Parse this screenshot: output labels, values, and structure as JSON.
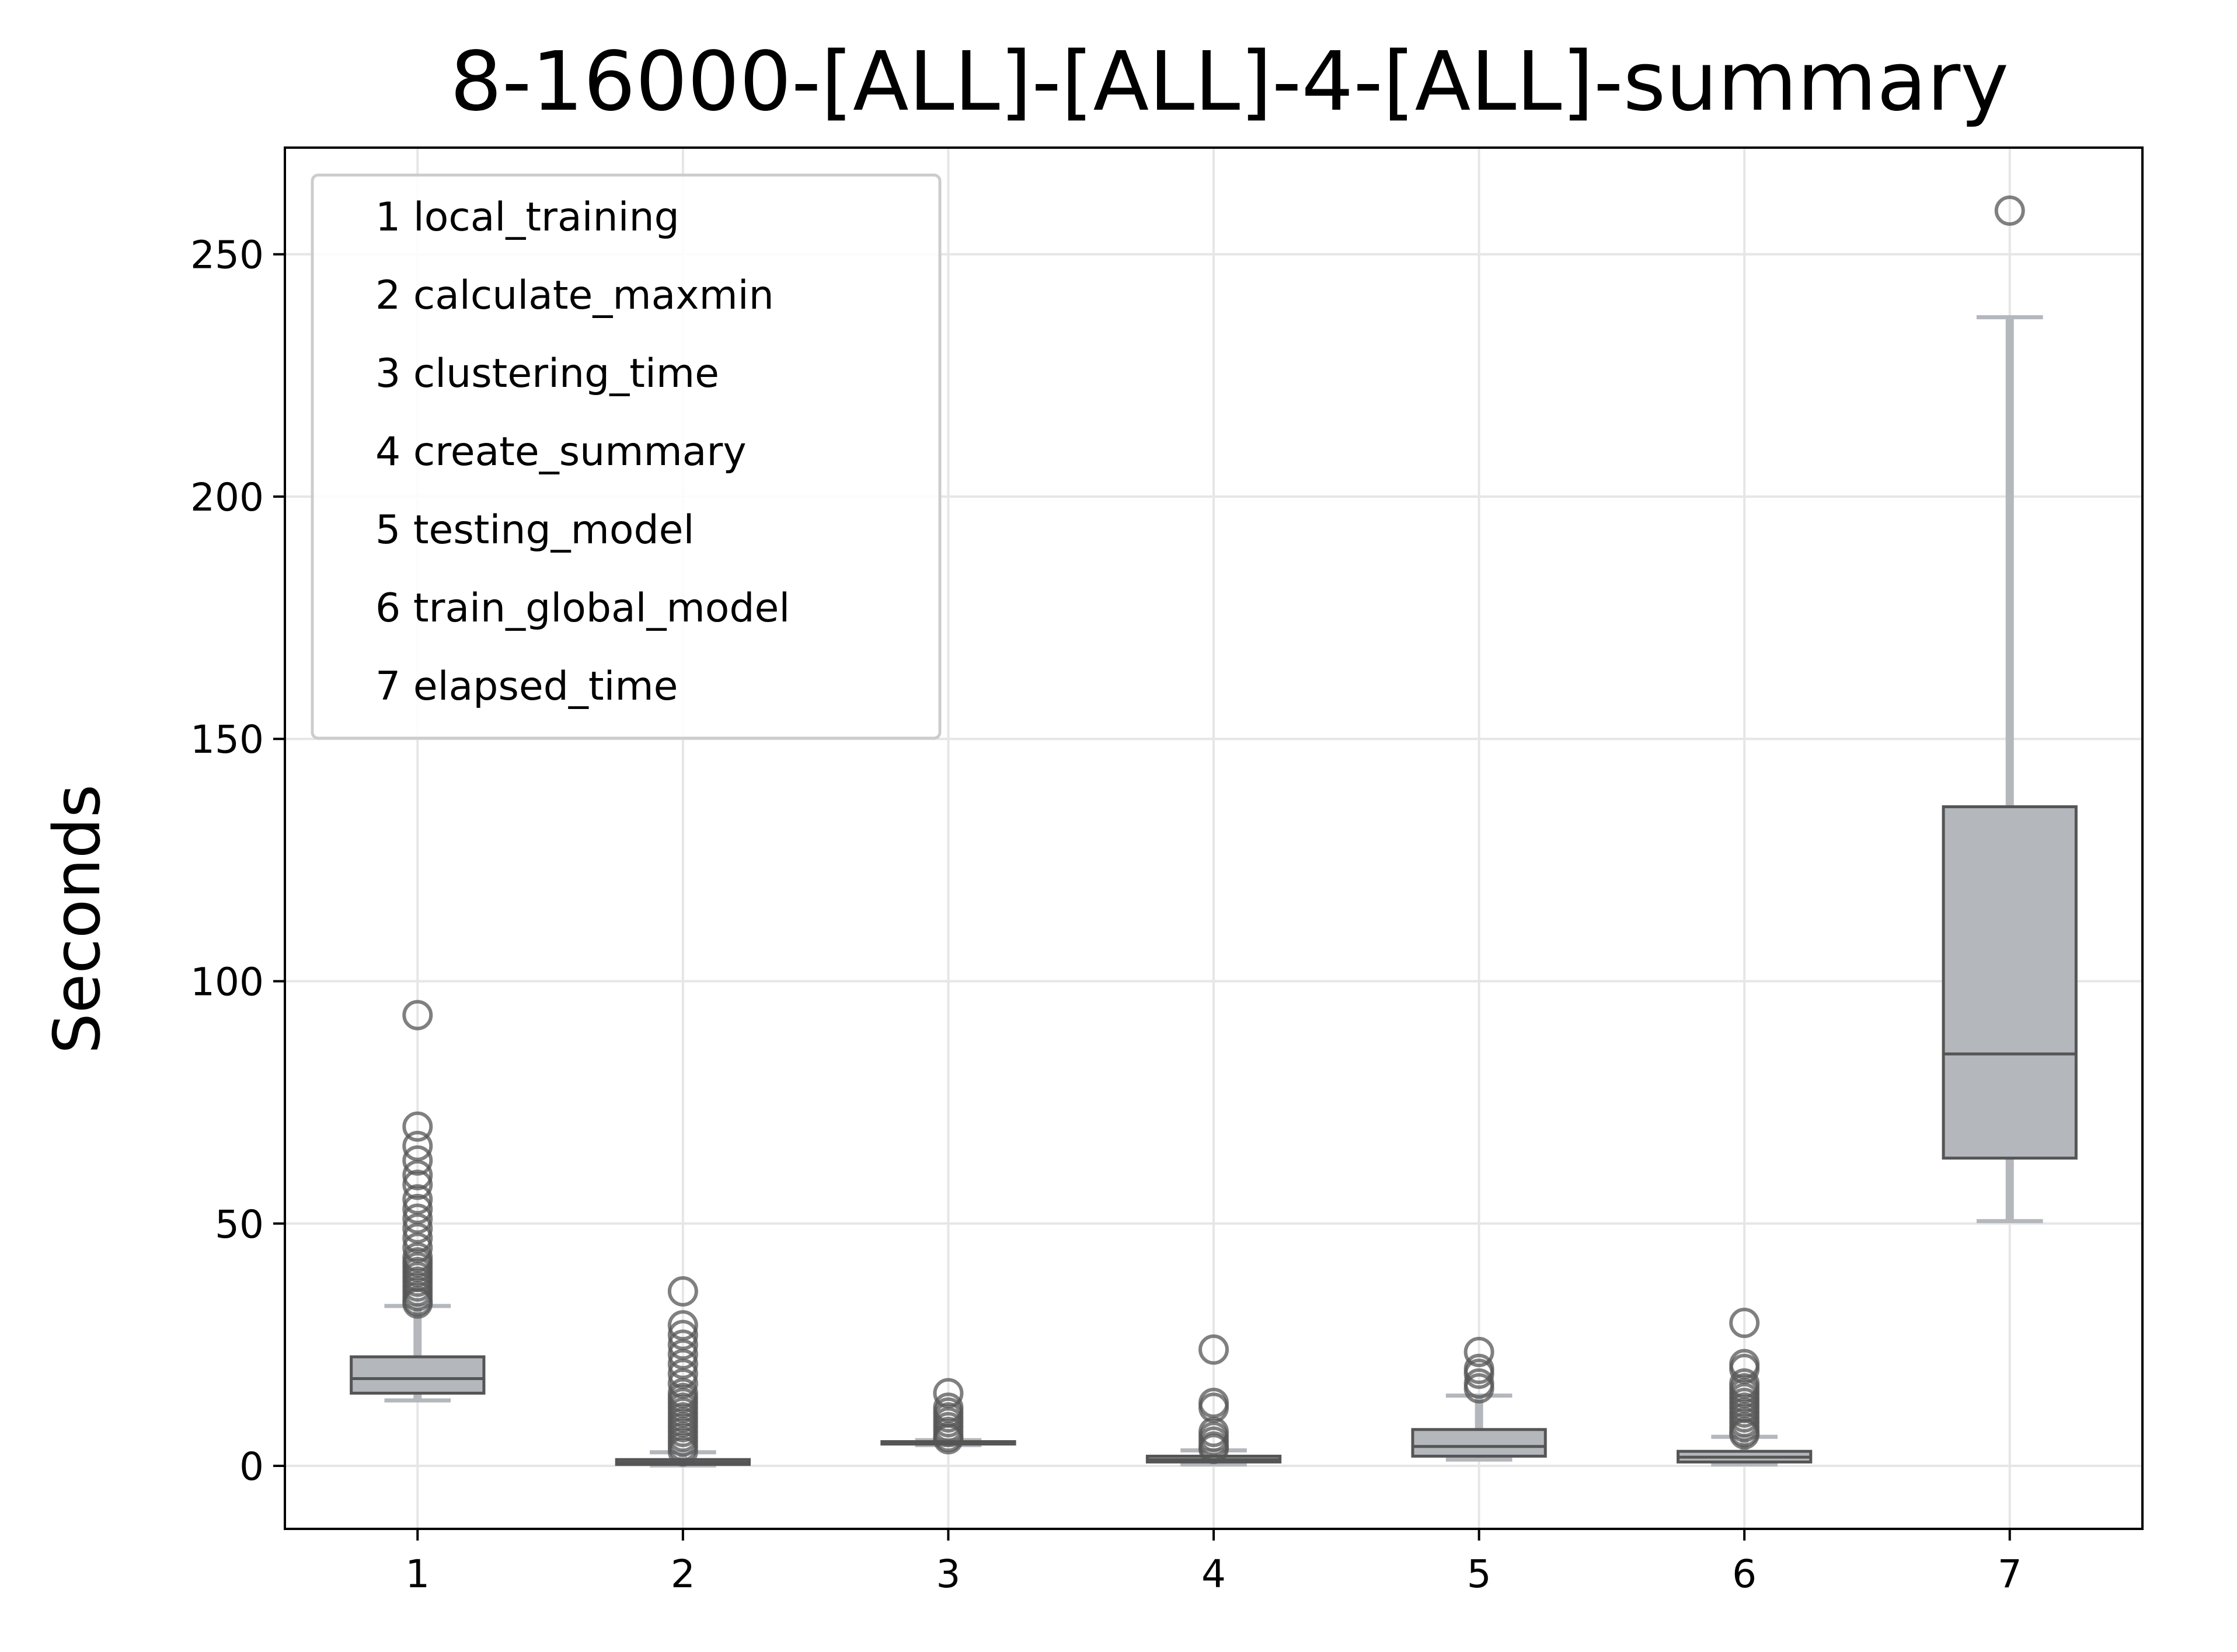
{
  "chart_data": {
    "type": "box",
    "title": "8-16000-[ALL]-[ALL]-4-[ALL]-summary",
    "xlabel": "",
    "ylabel": "Seconds",
    "ylim": [
      -13,
      272
    ],
    "xlim": [
      0.5,
      7.5
    ],
    "grid": true,
    "legend_position": "top-left",
    "colors": {
      "box_fill": "#b4b7bb",
      "box_edge": "#555555",
      "whisker": "#b4b7bb",
      "outlier": "#555555",
      "grid": "#e6e6e6"
    },
    "x_ticks": [
      "1",
      "2",
      "3",
      "4",
      "5",
      "6",
      "7"
    ],
    "y_ticks": [
      0,
      50,
      100,
      150,
      200,
      250
    ],
    "legend": [
      "1 local_training",
      "2 calculate_maxmin",
      "3 clustering_time",
      "4 create_summary",
      "5 testing_model",
      "6 train_global_model",
      "7 elapsed_time"
    ],
    "boxes": [
      {
        "position": 1,
        "whisker_low": 13.5,
        "q1": 15,
        "median": 18,
        "q3": 22.5,
        "whisker_high": 33,
        "outliers": [
          33.5,
          34,
          35,
          36,
          37,
          38,
          39,
          40,
          41,
          42,
          43,
          45,
          47,
          49,
          51,
          53,
          55,
          58,
          60,
          63,
          66,
          70,
          93
        ]
      },
      {
        "position": 2,
        "whisker_low": 0.1,
        "q1": 0.3,
        "median": 0.7,
        "q3": 1.3,
        "whisker_high": 2.8,
        "outliers": [
          3,
          4,
          5,
          6,
          7,
          8,
          9,
          10,
          11,
          12,
          13,
          14,
          15,
          17,
          19,
          21,
          23,
          25,
          27,
          29,
          36
        ]
      },
      {
        "position": 3,
        "whisker_low": 4.3,
        "q1": 4.5,
        "median": 4.7,
        "q3": 5,
        "whisker_high": 5.3,
        "outliers": [
          5.5,
          6,
          7,
          8,
          9,
          10,
          11,
          12,
          15
        ]
      },
      {
        "position": 4,
        "whisker_low": 0.3,
        "q1": 0.8,
        "median": 1.3,
        "q3": 2,
        "whisker_high": 3.2,
        "outliers": [
          3.5,
          4,
          5,
          6,
          7,
          12,
          13,
          24
        ]
      },
      {
        "position": 5,
        "whisker_low": 1.3,
        "q1": 2,
        "median": 4,
        "q3": 7.5,
        "whisker_high": 14.5,
        "outliers": [
          16,
          17,
          19,
          20,
          23.5
        ]
      },
      {
        "position": 6,
        "whisker_low": 0.3,
        "q1": 0.8,
        "median": 1.8,
        "q3": 3,
        "whisker_high": 6,
        "outliers": [
          6.5,
          7,
          8,
          9,
          10,
          11,
          12,
          13,
          14,
          15,
          16,
          17,
          20,
          21,
          29.5
        ]
      },
      {
        "position": 7,
        "whisker_low": 50.5,
        "q1": 63.5,
        "median": 85,
        "q3": 136,
        "whisker_high": 237,
        "outliers": [
          259
        ]
      }
    ]
  }
}
